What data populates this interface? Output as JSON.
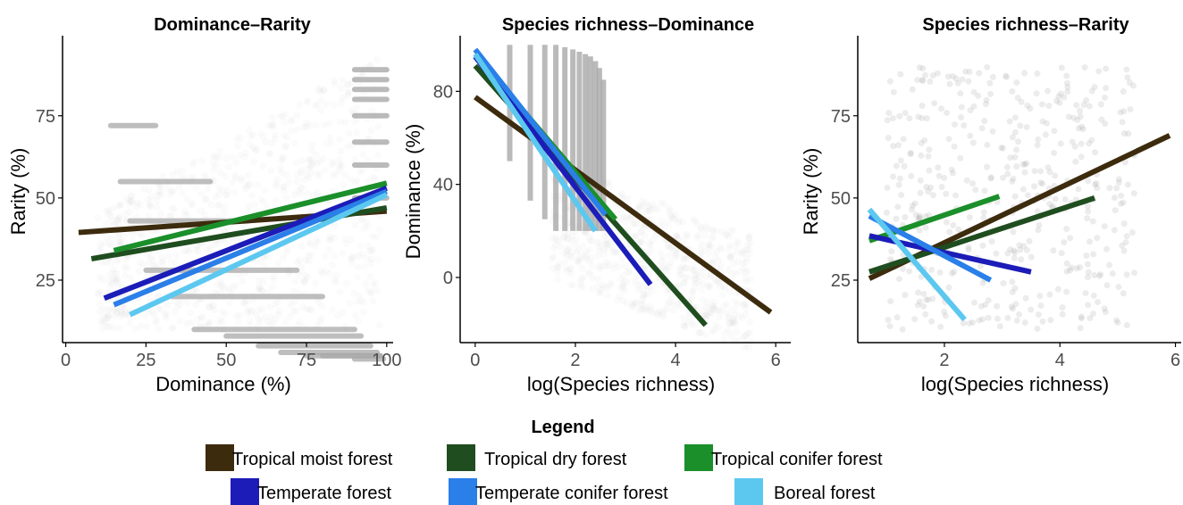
{
  "colors": {
    "tropical_moist": "#3d2b0e",
    "tropical_dry": "#1f4d1f",
    "tropical_conifer": "#1a8f2a",
    "temperate": "#1c1cb8",
    "temperate_conifer": "#2a7fe8",
    "boreal": "#5cc8f0",
    "points": "#a9a9a9"
  },
  "chart_data": [
    {
      "type": "scatter",
      "title": "Dominance–Rarity",
      "xlabel": "Dominance (%)",
      "ylabel": "Rarity (%)",
      "xlim": [
        -1,
        102
      ],
      "ylim": [
        6,
        98
      ],
      "xticks": [
        0,
        25,
        50,
        75,
        100
      ],
      "yticks": [
        25,
        50,
        75
      ],
      "grid": false,
      "series": [
        {
          "name": "Tropical moist forest",
          "color_key": "tropical_moist",
          "x": [
            4,
            100
          ],
          "y": [
            39.5,
            46
          ]
        },
        {
          "name": "Tropical dry forest",
          "color_key": "tropical_dry",
          "x": [
            8,
            100
          ],
          "y": [
            31.5,
            47
          ]
        },
        {
          "name": "Tropical conifer forest",
          "color_key": "tropical_conifer",
          "x": [
            15,
            100
          ],
          "y": [
            34,
            54.5
          ]
        },
        {
          "name": "Temperate forest",
          "color_key": "temperate",
          "x": [
            12,
            100
          ],
          "y": [
            19.5,
            53
          ]
        },
        {
          "name": "Temperate conifer forest",
          "color_key": "temperate_conifer",
          "x": [
            15,
            100
          ],
          "y": [
            17.5,
            52
          ]
        },
        {
          "name": "Boreal forest",
          "color_key": "boreal",
          "x": [
            20,
            100
          ],
          "y": [
            14.5,
            51
          ]
        }
      ]
    },
    {
      "type": "scatter",
      "title": "Species richness–Dominance",
      "xlabel": "log(Species richness)",
      "ylabel": "Dominance (%)",
      "xlim": [
        -0.3,
        6.3
      ],
      "ylim": [
        -28,
        102
      ],
      "xticks": [
        0,
        2,
        4,
        6
      ],
      "yticks": [
        0,
        40,
        80
      ],
      "grid": false,
      "series": [
        {
          "name": "Tropical moist forest",
          "color_key": "tropical_moist",
          "x": [
            0,
            5.9
          ],
          "y": [
            77.5,
            -15
          ]
        },
        {
          "name": "Tropical dry forest",
          "color_key": "tropical_dry",
          "x": [
            0,
            4.6
          ],
          "y": [
            91,
            -20.5
          ]
        },
        {
          "name": "Tropical conifer forest",
          "color_key": "tropical_conifer",
          "x": [
            0,
            2.8
          ],
          "y": [
            96,
            25
          ]
        },
        {
          "name": "Temperate forest",
          "color_key": "temperate",
          "x": [
            0,
            3.5
          ],
          "y": [
            95,
            -3
          ]
        },
        {
          "name": "Temperate conifer forest",
          "color_key": "temperate_conifer",
          "x": [
            0,
            2.6
          ],
          "y": [
            98,
            27
          ]
        },
        {
          "name": "Boreal forest",
          "color_key": "boreal",
          "x": [
            0,
            2.4
          ],
          "y": [
            96,
            20
          ]
        }
      ]
    },
    {
      "type": "scatter",
      "title": "Species richness–Rarity",
      "xlabel": "log(Species richness)",
      "ylabel": "Rarity (%)",
      "xlim": [
        0.5,
        6.1
      ],
      "ylim": [
        6,
        98
      ],
      "xticks": [
        2,
        4,
        6
      ],
      "yticks": [
        25,
        50,
        75
      ],
      "grid": false,
      "series": [
        {
          "name": "Tropical moist forest",
          "color_key": "tropical_moist",
          "x": [
            0.7,
            5.9
          ],
          "y": [
            25.5,
            69
          ]
        },
        {
          "name": "Tropical dry forest",
          "color_key": "tropical_dry",
          "x": [
            0.7,
            4.6
          ],
          "y": [
            27.5,
            50
          ]
        },
        {
          "name": "Tropical conifer forest",
          "color_key": "tropical_conifer",
          "x": [
            0.7,
            2.95
          ],
          "y": [
            37,
            50.5
          ]
        },
        {
          "name": "Temperate forest",
          "color_key": "temperate",
          "x": [
            0.7,
            3.5
          ],
          "y": [
            38.5,
            27.5
          ]
        },
        {
          "name": "Temperate conifer forest",
          "color_key": "temperate_conifer",
          "x": [
            0.7,
            2.8
          ],
          "y": [
            44.5,
            25
          ]
        },
        {
          "name": "Boreal forest",
          "color_key": "boreal",
          "x": [
            0.7,
            2.35
          ],
          "y": [
            46.5,
            13
          ]
        }
      ]
    }
  ],
  "legend": {
    "title": "Legend",
    "items": [
      {
        "label": "Tropical moist forest",
        "color_key": "tropical_moist"
      },
      {
        "label": "Tropical dry forest",
        "color_key": "tropical_dry"
      },
      {
        "label": "Tropical conifer forest",
        "color_key": "tropical_conifer"
      },
      {
        "label": "Temperate forest",
        "color_key": "temperate"
      },
      {
        "label": "Temperate conifer forest",
        "color_key": "temperate_conifer"
      },
      {
        "label": "Boreal forest",
        "color_key": "boreal"
      }
    ]
  }
}
